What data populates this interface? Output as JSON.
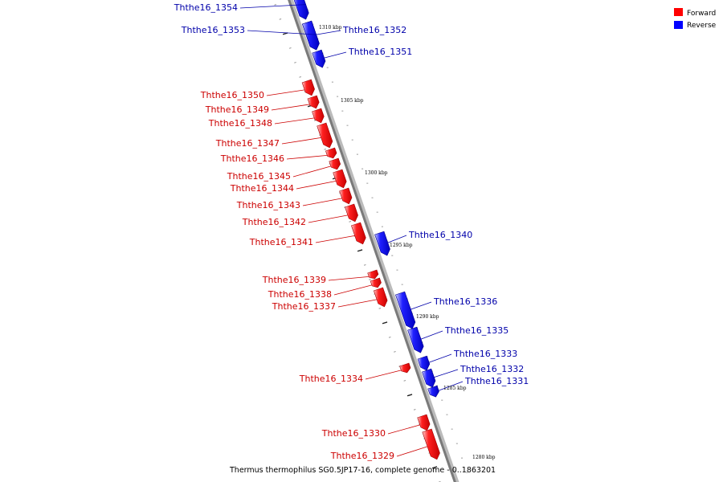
{
  "legend": {
    "forward_label": "Forward",
    "reverse_label": "Reverse",
    "forward_color": "#ff0000",
    "reverse_color": "#0000ff"
  },
  "caption": "Thermus thermophilus SG0.5JP17-16, complete genome - 0..1863201",
  "scale_labels": [
    "1310 kbp",
    "1305 kbp",
    "1300 kbp",
    "1295 kbp",
    "1290 kbp",
    "1285 kbp",
    "1280 kbp"
  ],
  "genes": [
    {
      "id": "Ththe16_1354",
      "strand": "reverse"
    },
    {
      "id": "Ththe16_1353",
      "strand": "reverse"
    },
    {
      "id": "Ththe16_1352",
      "strand": "reverse"
    },
    {
      "id": "Ththe16_1351",
      "strand": "reverse"
    },
    {
      "id": "Ththe16_1350",
      "strand": "forward"
    },
    {
      "id": "Ththe16_1349",
      "strand": "forward"
    },
    {
      "id": "Ththe16_1348",
      "strand": "forward"
    },
    {
      "id": "Ththe16_1347",
      "strand": "forward"
    },
    {
      "id": "Ththe16_1346",
      "strand": "forward"
    },
    {
      "id": "Ththe16_1345",
      "strand": "forward"
    },
    {
      "id": "Ththe16_1344",
      "strand": "forward"
    },
    {
      "id": "Ththe16_1343",
      "strand": "forward"
    },
    {
      "id": "Ththe16_1342",
      "strand": "forward"
    },
    {
      "id": "Ththe16_1341",
      "strand": "forward"
    },
    {
      "id": "Ththe16_1340",
      "strand": "reverse"
    },
    {
      "id": "Ththe16_1339",
      "strand": "forward"
    },
    {
      "id": "Ththe16_1338",
      "strand": "forward"
    },
    {
      "id": "Ththe16_1337",
      "strand": "forward"
    },
    {
      "id": "Ththe16_1336",
      "strand": "reverse"
    },
    {
      "id": "Ththe16_1335",
      "strand": "reverse"
    },
    {
      "id": "Ththe16_1334",
      "strand": "forward"
    },
    {
      "id": "Ththe16_1333",
      "strand": "reverse"
    },
    {
      "id": "Ththe16_1332",
      "strand": "reverse"
    },
    {
      "id": "Ththe16_1331",
      "strand": "reverse"
    },
    {
      "id": "Ththe16_1330",
      "strand": "forward"
    },
    {
      "id": "Ththe16_1329",
      "strand": "forward"
    }
  ]
}
